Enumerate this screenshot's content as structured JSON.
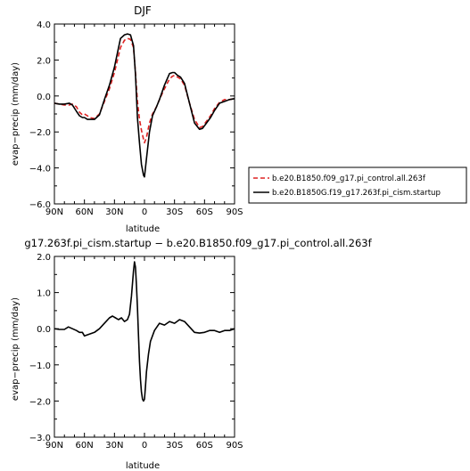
{
  "chart_data": [
    {
      "type": "line",
      "title": "DJF",
      "xlabel": "latitude",
      "ylabel": "evap−precip (mm/day)",
      "xlim": [
        90,
        -90
      ],
      "ylim": [
        -6.0,
        4.0
      ],
      "xticks": [
        90,
        60,
        30,
        0,
        -30,
        -60,
        -90
      ],
      "xtick_labels": [
        "90N",
        "60N",
        "30N",
        "0",
        "30S",
        "60S",
        "90S"
      ],
      "yticks": [
        -6.0,
        -4.0,
        -2.0,
        0.0,
        2.0,
        4.0
      ],
      "ytick_labels": [
        "−6.0",
        "−4.0",
        "−2.0",
        "0.0",
        "2.0",
        "4.0"
      ],
      "grid": false,
      "legend": "right",
      "series": [
        {
          "name": "b.e20.B1850.f09_g17.pi_control.all.263f",
          "color": "#dd2222",
          "dash": "dashed",
          "x": [
            90,
            85,
            80,
            75,
            72,
            68,
            65,
            62,
            60,
            57,
            55,
            50,
            45,
            40,
            35,
            30,
            27,
            24,
            20,
            17,
            14,
            11,
            9,
            7,
            5,
            3,
            1,
            0,
            -2,
            -5,
            -8,
            -12,
            -15,
            -20,
            -25,
            -28,
            -30,
            -33,
            -36,
            -40,
            -45,
            -50,
            -55,
            -58,
            -62,
            -66,
            -70,
            -75,
            -80,
            -85,
            -90
          ],
          "y": [
            -0.4,
            -0.45,
            -0.5,
            -0.5,
            -0.45,
            -0.6,
            -0.9,
            -1.05,
            -1.0,
            -1.1,
            -1.2,
            -1.25,
            -1.0,
            -0.3,
            0.4,
            1.3,
            2.0,
            2.7,
            3.1,
            3.2,
            3.15,
            2.7,
            1.3,
            -0.3,
            -1.3,
            -1.9,
            -2.4,
            -2.6,
            -2.3,
            -1.5,
            -1.0,
            -0.6,
            -0.2,
            0.4,
            0.95,
            1.1,
            1.15,
            1.05,
            0.95,
            0.6,
            -0.4,
            -1.3,
            -1.75,
            -1.7,
            -1.4,
            -1.1,
            -0.7,
            -0.35,
            -0.2,
            -0.2,
            -0.15
          ]
        },
        {
          "name": "b.e20.B1850G.f19_g17.263f.pi_cism.startup",
          "color": "#000000",
          "dash": "solid",
          "x": [
            90,
            85,
            80,
            75,
            72,
            68,
            65,
            62,
            60,
            57,
            55,
            50,
            45,
            40,
            35,
            30,
            27,
            24,
            20,
            17,
            14,
            11,
            9,
            7,
            5,
            3,
            1,
            0,
            -2,
            -5,
            -8,
            -12,
            -15,
            -20,
            -25,
            -28,
            -30,
            -33,
            -36,
            -40,
            -45,
            -50,
            -55,
            -58,
            -62,
            -66,
            -70,
            -75,
            -80,
            -85,
            -90
          ],
          "y": [
            -0.4,
            -0.45,
            -0.45,
            -0.4,
            -0.5,
            -0.85,
            -1.1,
            -1.2,
            -1.2,
            -1.3,
            -1.3,
            -1.3,
            -1.05,
            -0.2,
            0.6,
            1.6,
            2.4,
            3.2,
            3.4,
            3.45,
            3.4,
            2.8,
            1.2,
            -1.2,
            -2.6,
            -3.8,
            -4.4,
            -4.5,
            -3.5,
            -2.0,
            -1.1,
            -0.6,
            -0.2,
            0.6,
            1.25,
            1.3,
            1.3,
            1.15,
            1.05,
            0.7,
            -0.4,
            -1.5,
            -1.85,
            -1.8,
            -1.5,
            -1.2,
            -0.8,
            -0.4,
            -0.3,
            -0.2,
            -0.15
          ]
        }
      ]
    },
    {
      "type": "line",
      "title": "g17.263f.pi_cism.startup − b.e20.B1850.f09_g17.pi_control.all.263f",
      "xlabel": "latitude",
      "ylabel": "evap−precip (mm/day)",
      "xlim": [
        90,
        -90
      ],
      "ylim": [
        -3.0,
        2.0
      ],
      "xticks": [
        90,
        60,
        30,
        0,
        -30,
        -60,
        -90
      ],
      "xtick_labels": [
        "90N",
        "60N",
        "30N",
        "0",
        "30S",
        "60S",
        "90S"
      ],
      "yticks": [
        -3.0,
        -2.0,
        -1.0,
        0.0,
        1.0,
        2.0
      ],
      "ytick_labels": [
        "−3.0",
        "−2.0",
        "−1.0",
        "0.0",
        "1.0",
        "2.0"
      ],
      "grid": false,
      "series": [
        {
          "color": "#000000",
          "dash": "solid",
          "x": [
            90,
            85,
            80,
            76,
            72,
            68,
            65,
            62,
            60,
            55,
            50,
            45,
            40,
            35,
            32,
            29,
            26,
            23,
            20,
            17,
            15,
            13,
            11,
            10,
            9,
            8,
            7,
            6,
            5,
            4,
            3,
            2,
            1,
            0,
            -1,
            -2,
            -4,
            -6,
            -10,
            -15,
            -20,
            -25,
            -30,
            -35,
            -40,
            -45,
            -50,
            -55,
            -60,
            -65,
            -70,
            -75,
            -80,
            -85,
            -90
          ],
          "y": [
            0.0,
            -0.02,
            -0.02,
            0.05,
            0.0,
            -0.05,
            -0.1,
            -0.1,
            -0.2,
            -0.15,
            -0.1,
            0.0,
            0.15,
            0.3,
            0.35,
            0.3,
            0.25,
            0.3,
            0.2,
            0.25,
            0.4,
            0.9,
            1.6,
            1.85,
            1.7,
            1.2,
            0.6,
            -0.2,
            -0.9,
            -1.4,
            -1.75,
            -1.95,
            -2.0,
            -1.95,
            -1.6,
            -1.2,
            -0.7,
            -0.35,
            -0.05,
            0.15,
            0.1,
            0.2,
            0.15,
            0.25,
            0.2,
            0.05,
            -0.1,
            -0.12,
            -0.1,
            -0.05,
            -0.05,
            -0.1,
            -0.05,
            -0.05,
            0.0
          ]
        }
      ]
    }
  ]
}
